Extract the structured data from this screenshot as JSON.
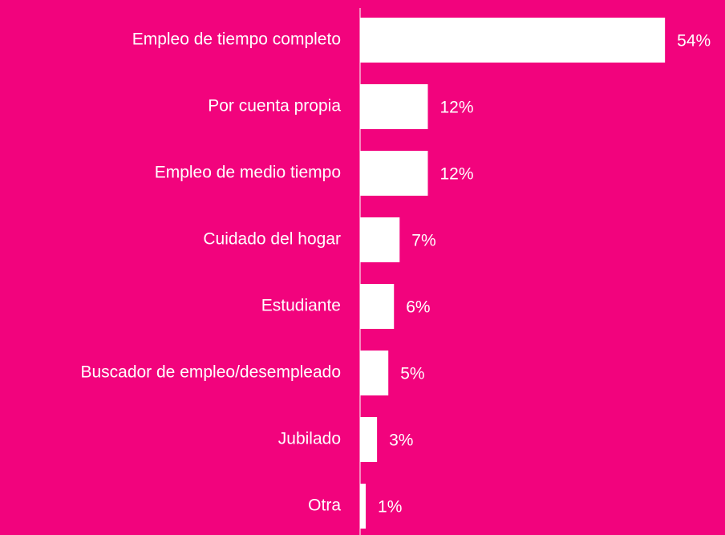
{
  "chart_data": {
    "type": "bar",
    "orientation": "horizontal",
    "categories": [
      "Empleo de tiempo completo",
      "Por cuenta propia",
      "Empleo de medio tiempo",
      "Cuidado del hogar",
      "Estudiante",
      "Buscador de empleo/desempleado",
      "Jubilado",
      "Otra"
    ],
    "values": [
      54,
      12,
      12,
      7,
      6,
      5,
      3,
      1
    ],
    "value_labels": [
      "54%",
      "12%",
      "12%",
      "7%",
      "6%",
      "5%",
      "3%",
      "1%"
    ],
    "color": "#ffffff"
  }
}
